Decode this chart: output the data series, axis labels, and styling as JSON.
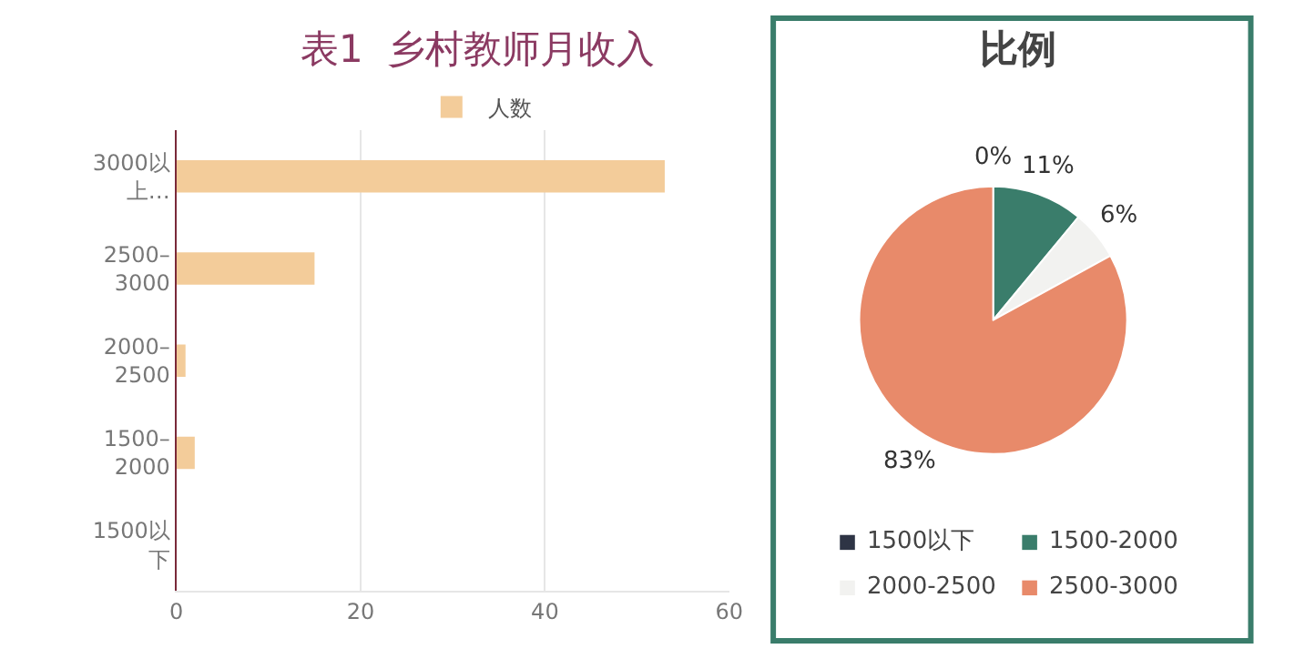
{
  "chart_data": [
    {
      "type": "bar",
      "title": "表1  乡村教师月收入",
      "orientation": "horizontal",
      "categories": [
        "3000以上…",
        "2500–3000",
        "2000–2500",
        "1500–2000",
        "1500以下"
      ],
      "series": [
        {
          "name": "人数",
          "color": "#f3cc9a",
          "values": [
            53,
            15,
            1,
            2,
            0
          ]
        }
      ],
      "xlim": [
        0,
        60
      ],
      "xticks": [
        0,
        20,
        40,
        60
      ],
      "grid": "x",
      "legend": "top"
    },
    {
      "type": "pie",
      "title": "比例",
      "categories": [
        "1500以下",
        "1500-2000",
        "2000-2500",
        "2500-3000"
      ],
      "values": [
        0,
        11,
        6,
        83
      ],
      "value_labels": [
        "0%",
        "11%",
        "6%",
        "83%"
      ],
      "colors": [
        "#2e3445",
        "#3a7d6b",
        "#f2f2f0",
        "#e88a6a"
      ],
      "legend": "bottom"
    }
  ]
}
